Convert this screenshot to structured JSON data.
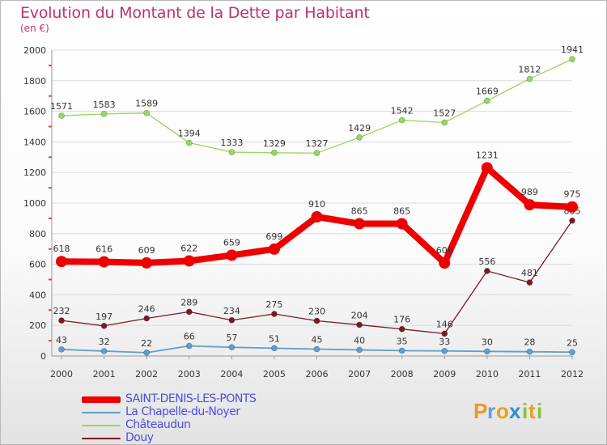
{
  "title": "Evolution du Montant de la Dette par Habitant",
  "unit_label": "(en €)",
  "logo_text": "Proxiti",
  "chart_data": {
    "type": "line",
    "title": "Evolution du Montant de la Dette par Habitant",
    "subtitle": "(en €)",
    "xlabel": "",
    "ylabel": "",
    "x": [
      "2000",
      "2001",
      "2002",
      "2003",
      "2004",
      "2005",
      "2006",
      "2007",
      "2008",
      "2009",
      "2010",
      "2011",
      "2012"
    ],
    "ylim": [
      0,
      2000
    ],
    "yticks": [
      "0",
      "200",
      "400",
      "600",
      "800",
      "1000",
      "1200",
      "1400",
      "1600",
      "1800",
      "2000"
    ],
    "grid": true,
    "legend": "bottom-left",
    "series": [
      {
        "name": "Châteaudun",
        "color": "#99d760",
        "values": [
          1571,
          1583,
          1589,
          1394,
          1333,
          1329,
          1327,
          1429,
          1542,
          1527,
          1669,
          1812,
          1941
        ]
      },
      {
        "name": "Douy",
        "color": "#7a1a26",
        "values": [
          232,
          197,
          246,
          289,
          234,
          275,
          230,
          204,
          176,
          146,
          556,
          481,
          885
        ]
      },
      {
        "name": "La Chapelle-du-Noyer",
        "color": "#5f9fcf",
        "values": [
          43,
          32,
          22,
          66,
          57,
          51,
          45,
          40,
          35,
          33,
          30,
          28,
          25
        ]
      },
      {
        "name": "SAINT-DENIS-LES-PONTS",
        "color": "#ee0000",
        "values": [
          618,
          616,
          609,
          622,
          659,
          699,
          910,
          865,
          865,
          608,
          1231,
          989,
          975
        ]
      }
    ],
    "legend_entries": [
      {
        "name": "SAINT-DENIS-LES-PONTS",
        "color": "#ee0000",
        "text_color": "#4a4ee8"
      },
      {
        "name": "La Chapelle-du-Noyer",
        "color": "#5f9fcf",
        "text_color": "#4a4ee8"
      },
      {
        "name": "Châteaudun",
        "color": "#99d760",
        "text_color": "#4a4ee8"
      },
      {
        "name": "Douy",
        "color": "#7a1a26",
        "text_color": "#4a4ee8"
      }
    ]
  }
}
